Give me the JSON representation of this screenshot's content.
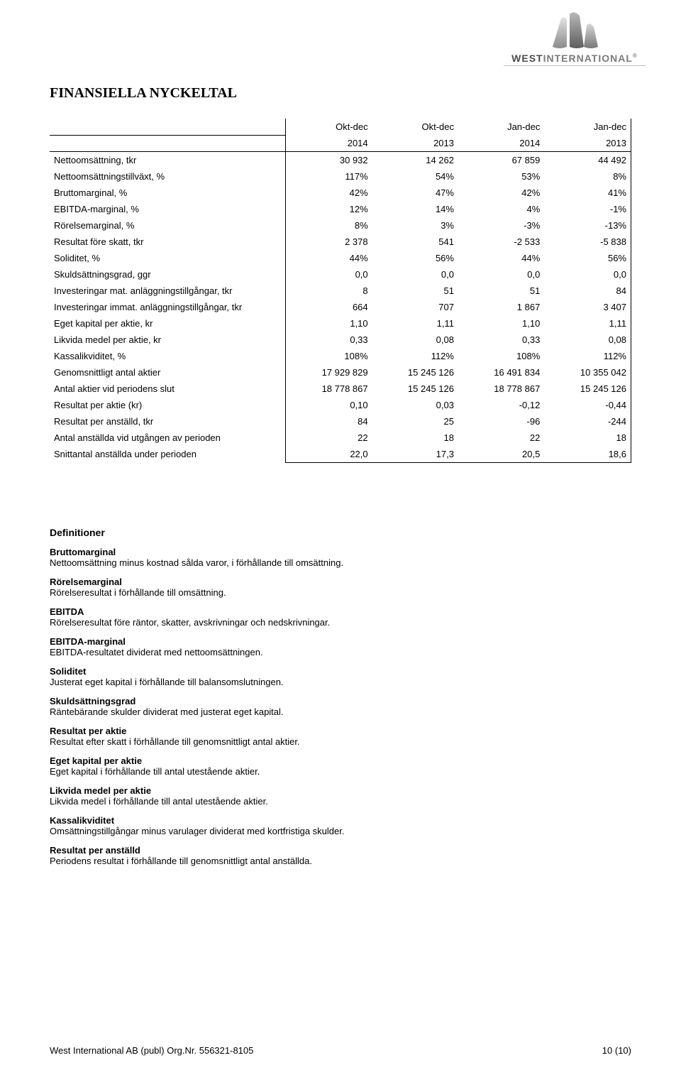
{
  "brand": {
    "bold": "WEST",
    "light": "INTERNATIONAL"
  },
  "title": "FINANSIELLA NYCKELTAL",
  "table": {
    "period_labels": [
      "Okt-dec",
      "Okt-dec",
      "Jan-dec",
      "Jan-dec"
    ],
    "years": [
      "2014",
      "2013",
      "2014",
      "2013"
    ],
    "rows": [
      {
        "label": "Nettoomsättning, tkr",
        "v": [
          "30 932",
          "14 262",
          "67 859",
          "44 492"
        ]
      },
      {
        "label": "Nettoomsättningstillväxt, %",
        "v": [
          "117%",
          "54%",
          "53%",
          "8%"
        ]
      },
      {
        "label": "Bruttomarginal, %",
        "v": [
          "42%",
          "47%",
          "42%",
          "41%"
        ]
      },
      {
        "label": "EBITDA-marginal, %",
        "v": [
          "12%",
          "14%",
          "4%",
          "-1%"
        ]
      },
      {
        "label": "Rörelsemarginal, %",
        "v": [
          "8%",
          "3%",
          "-3%",
          "-13%"
        ]
      },
      {
        "label": "Resultat före skatt, tkr",
        "v": [
          "2 378",
          "541",
          "-2 533",
          "-5 838"
        ]
      },
      {
        "label": "Soliditet, %",
        "v": [
          "44%",
          "56%",
          "44%",
          "56%"
        ]
      },
      {
        "label": "Skuldsättningsgrad, ggr",
        "v": [
          "0,0",
          "0,0",
          "0,0",
          "0,0"
        ]
      },
      {
        "label": "Investeringar mat. anläggningstillgångar, tkr",
        "v": [
          "8",
          "51",
          "51",
          "84"
        ]
      },
      {
        "label": "Investeringar immat. anläggningstillgångar, tkr",
        "v": [
          "664",
          "707",
          "1 867",
          "3 407"
        ]
      },
      {
        "label": "Eget kapital per aktie, kr",
        "v": [
          "1,10",
          "1,11",
          "1,10",
          "1,11"
        ]
      },
      {
        "label": "Likvida medel per aktie, kr",
        "v": [
          "0,33",
          "0,08",
          "0,33",
          "0,08"
        ]
      },
      {
        "label": "Kassalikviditet, %",
        "v": [
          "108%",
          "112%",
          "108%",
          "112%"
        ]
      },
      {
        "label": "Genomsnittligt antal aktier",
        "v": [
          "17 929 829",
          "15 245 126",
          "16 491 834",
          "10 355 042"
        ]
      },
      {
        "label": "Antal aktier vid periodens slut",
        "v": [
          "18 778 867",
          "15 245 126",
          "18 778 867",
          "15 245 126"
        ]
      },
      {
        "label": "Resultat per aktie (kr)",
        "v": [
          "0,10",
          "0,03",
          "-0,12",
          "-0,44"
        ]
      },
      {
        "label": "Resultat per anställd, tkr",
        "v": [
          "84",
          "25",
          "-96",
          "-244"
        ]
      },
      {
        "label": "Antal anställda vid utgången av perioden",
        "v": [
          "22",
          "18",
          "22",
          "18"
        ]
      },
      {
        "label": "Snittantal anställda under perioden",
        "v": [
          "22,0",
          "17,3",
          "20,5",
          "18,6"
        ]
      }
    ]
  },
  "defs_heading": "Definitioner",
  "defs": [
    {
      "term": "Bruttomarginal",
      "desc": "Nettoomsättning minus kostnad sålda varor, i förhållande till omsättning."
    },
    {
      "term": "Rörelsemarginal",
      "desc": "Rörelseresultat i förhållande till omsättning."
    },
    {
      "term": "EBITDA",
      "desc": "Rörelseresultat före räntor, skatter, avskrivningar och nedskrivningar."
    },
    {
      "term": "EBITDA-marginal",
      "desc": "EBITDA-resultatet dividerat med nettoomsättningen."
    },
    {
      "term": "Soliditet",
      "desc": "Justerat eget kapital i förhållande till balansomslutningen."
    },
    {
      "term": "Skuldsättningsgrad",
      "desc": "Räntebärande skulder dividerat med justerat eget kapital."
    },
    {
      "term": "Resultat per aktie",
      "desc": "Resultat efter skatt i förhållande till genomsnittligt antal aktier."
    },
    {
      "term": "Eget kapital per aktie",
      "desc": "Eget kapital i förhållande till antal utestående aktier."
    },
    {
      "term": "Likvida medel per aktie",
      "desc": "Likvida medel i förhållande till antal utestående aktier."
    },
    {
      "term": "Kassalikviditet",
      "desc": "Omsättningstillgångar minus varulager dividerat med kortfristiga skulder."
    },
    {
      "term": "Resultat per anställd",
      "desc": "Periodens resultat i förhållande till genomsnittligt antal anställda."
    }
  ],
  "footer": {
    "left": "West International AB (publ)  Org.Nr. 556321-8105",
    "right": "10 (10)"
  }
}
